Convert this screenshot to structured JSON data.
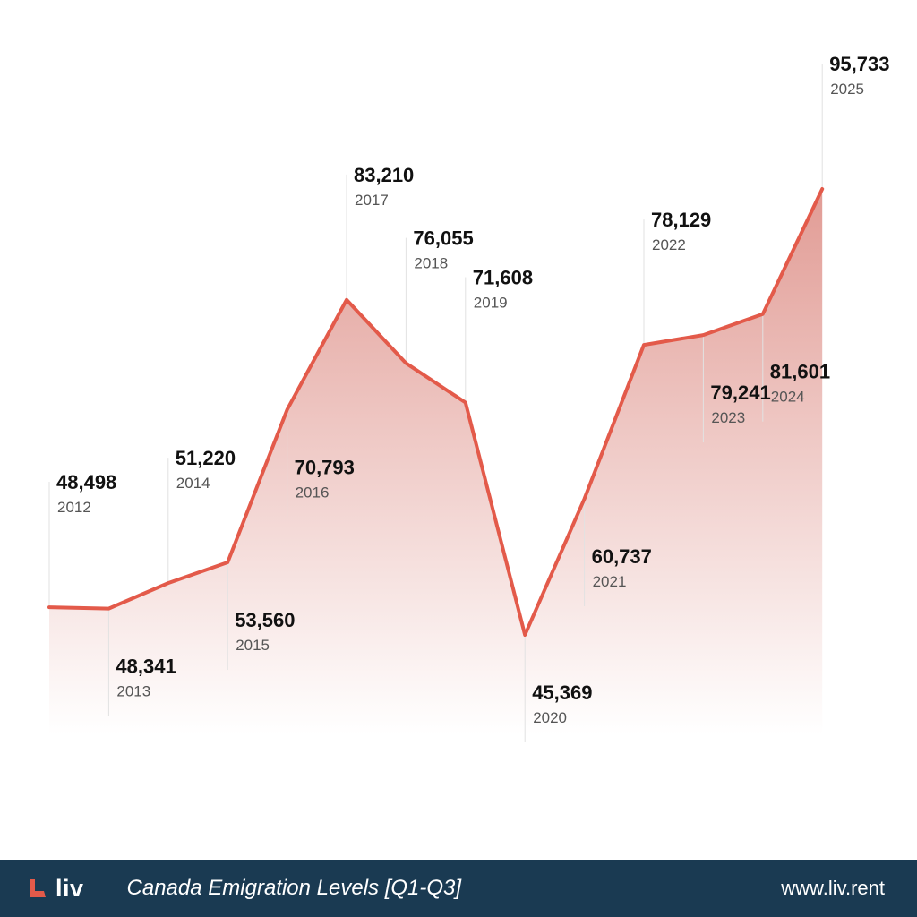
{
  "colors": {
    "line": "#E35A4A",
    "fill_top": "#DC8A82",
    "footer_bg": "#1A3A52",
    "guide": "#E2E2E2"
  },
  "chart_data": {
    "type": "area",
    "title": "Canada Emigration Levels [Q1-Q3]",
    "xlabel": "",
    "ylabel": "",
    "ylim": [
      40000,
      100000
    ],
    "grid": false,
    "legend": "none",
    "x": [
      "2012",
      "2013",
      "2014",
      "2015",
      "2016",
      "2017",
      "2018",
      "2019",
      "2020",
      "2021",
      "2022",
      "2023",
      "2024",
      "2025"
    ],
    "values": [
      48498,
      48341,
      51220,
      53560,
      70793,
      83210,
      76055,
      71608,
      45369,
      60737,
      78129,
      79241,
      81601,
      95733
    ],
    "value_labels": [
      "48,498",
      "48,341",
      "51,220",
      "53,560",
      "70,793",
      "83,210",
      "76,055",
      "71,608",
      "45,369",
      "60,737",
      "78,129",
      "79,241",
      "81,601",
      "95,733"
    ],
    "label_position": [
      "above",
      "below",
      "above",
      "below",
      "below",
      "above",
      "above",
      "above",
      "below",
      "below",
      "above",
      "below",
      "below",
      "above"
    ]
  },
  "footer": {
    "logo_icon": "liv-logo-icon",
    "logo_text": "liv",
    "title": "Canada Emigration Levels [Q1-Q3]",
    "url": "www.liv.rent"
  }
}
